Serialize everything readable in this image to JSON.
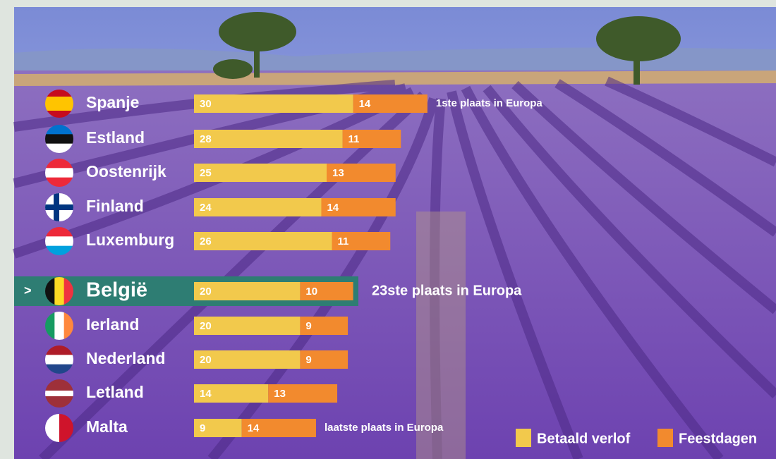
{
  "chart_data": {
    "type": "stacked-bar",
    "categories": [
      "Spanje",
      "Estland",
      "Oostenrijk",
      "Finland",
      "Luxemburg",
      "België",
      "Ierland",
      "Nederland",
      "Letland",
      "Malta"
    ],
    "series": [
      {
        "name": "Betaald verlof",
        "color": "#f2c94c",
        "values": [
          30,
          28,
          25,
          24,
          26,
          20,
          20,
          20,
          14,
          9
        ]
      },
      {
        "name": "Feestdagen",
        "color": "#f28a2e",
        "values": [
          14,
          11,
          13,
          14,
          11,
          10,
          9,
          9,
          13,
          14
        ]
      }
    ],
    "annotations": {
      "Spanje": "1ste plaats in Europa",
      "België": "23ste plaats in Europa",
      "Malta": "laatste plaats in Europa"
    },
    "highlight": "België",
    "highlight_color": "#2e7d73",
    "highlight_marker": ">"
  }
}
